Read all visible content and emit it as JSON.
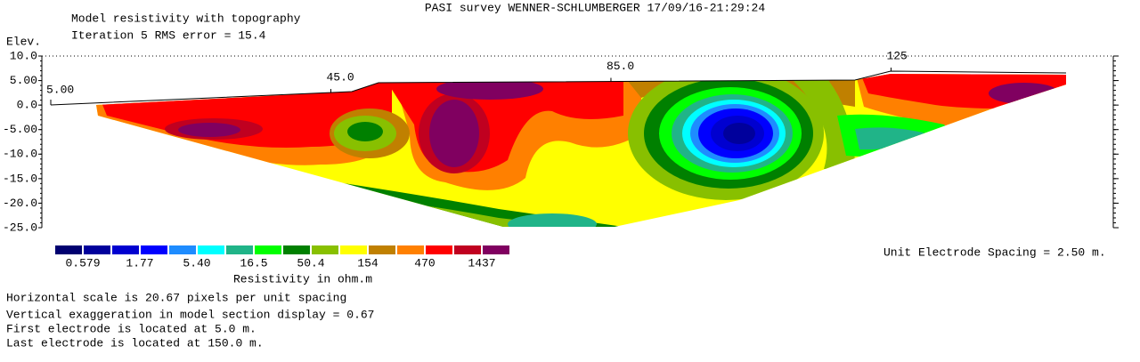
{
  "header": {
    "title": "PASI survey WENNER-SCHLUMBERGER 17/09/16-21:29:24",
    "subtitle": "Model resistivity with topography",
    "iteration": "Iteration 5 RMS error = 15.4"
  },
  "chart_data": {
    "type": "contour",
    "y_label": "Elev.",
    "ylim": [
      -25,
      10
    ],
    "yticks": [
      {
        "value": 10,
        "label": "10.0"
      },
      {
        "value": 5,
        "label": "5.00"
      },
      {
        "value": 0,
        "label": "0.0"
      },
      {
        "value": -5,
        "label": "-5.00"
      },
      {
        "value": -10,
        "label": "-10.0"
      },
      {
        "value": -15,
        "label": "-15.0"
      },
      {
        "value": -20,
        "label": "-20.0"
      },
      {
        "value": -25,
        "label": "-25.0"
      }
    ],
    "xlim": [
      5,
      150
    ],
    "xticks": [
      {
        "value": 5,
        "label": "5.00"
      },
      {
        "value": 45,
        "label": "45.0"
      },
      {
        "value": 85,
        "label": "85.0"
      },
      125
    ],
    "legend": {
      "title": "Resistivity in ohm.m",
      "colors": [
        "#000070",
        "#00009c",
        "#0000d0",
        "#0000ff",
        "#1e8cff",
        "#00ffff",
        "#20b488",
        "#00ff00",
        "#008000",
        "#88c000",
        "#ffff00",
        "#c08000",
        "#ff8000",
        "#ff0000",
        "#c00020",
        "#800060"
      ],
      "ticks": [
        0.579,
        1.77,
        {
          "value": 5.4,
          "label": "5.40"
        },
        16.5,
        50.4,
        154,
        470,
        1437
      ]
    },
    "spacing_note": "Unit Electrode Spacing = 2.50 m."
  },
  "notes": [
    "Horizontal scale is 20.67 pixels per unit spacing",
    "Vertical exaggeration in model section display = 0.67",
    "First electrode is located at 5.0  m.",
    "Last electrode is located at 150.0 m."
  ]
}
